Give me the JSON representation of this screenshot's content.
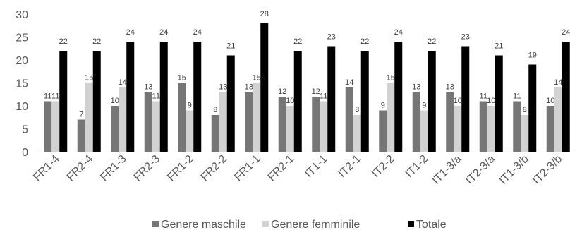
{
  "chart_data": {
    "type": "bar",
    "categories": [
      "FR1-4",
      "FR2-4",
      "FR1-3",
      "FR2-3",
      "FR1-2",
      "FR2-2",
      "FR1-1",
      "FR2-1",
      "IT1-1",
      "IT2-1",
      "IT2-2",
      "IT1-2",
      "IT1-3/a",
      "IT2-3/a",
      "IT1-3/b",
      "IT2-3/b"
    ],
    "series": [
      {
        "name": "Genere maschile",
        "color": "#767676",
        "values": [
          11,
          7,
          10,
          13,
          15,
          8,
          13,
          12,
          12,
          14,
          9,
          13,
          13,
          11,
          11,
          10
        ]
      },
      {
        "name": "Genere femminile",
        "color": "#d2d2d2",
        "values": [
          11,
          15,
          14,
          11,
          9,
          13,
          15,
          10,
          11,
          8,
          15,
          9,
          10,
          10,
          8,
          14
        ]
      },
      {
        "name": "Totale",
        "color": "#000000",
        "values": [
          22,
          22,
          24,
          24,
          24,
          21,
          28,
          22,
          23,
          22,
          24,
          22,
          23,
          21,
          19,
          24
        ]
      }
    ],
    "yticks": [
      "0",
      "5",
      "10",
      "15",
      "20",
      "25",
      "30"
    ],
    "ylim": [
      0,
      30
    ],
    "title": "",
    "xlabel": "",
    "ylabel": "",
    "grid": false,
    "legend_position": "bottom"
  }
}
